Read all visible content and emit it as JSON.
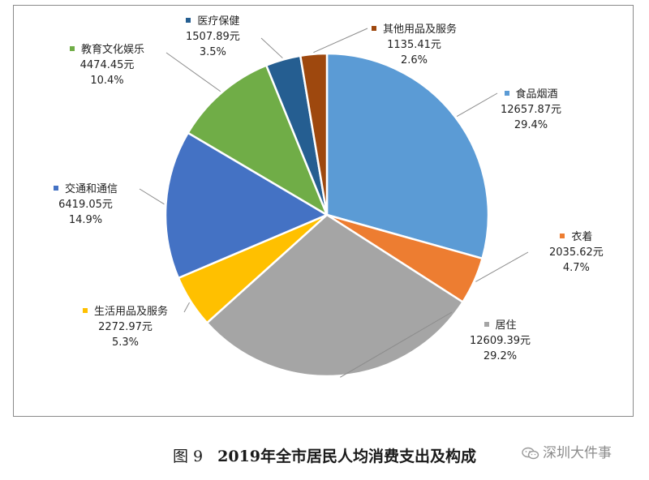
{
  "chart_data": {
    "type": "pie",
    "title": "2019年全市居民人均消费支出及构成",
    "slices": [
      {
        "name": "食品烟酒",
        "value": 12657.87,
        "value_label": "12657.87元",
        "percent_label": "29.4%",
        "color": "#5b9bd5"
      },
      {
        "name": "衣着",
        "value": 2035.62,
        "value_label": "2035.62元",
        "percent_label": "4.7%",
        "color": "#ed7d31"
      },
      {
        "name": "居住",
        "value": 12609.39,
        "value_label": "12609.39元",
        "percent_label": "29.2%",
        "color": "#a5a5a5"
      },
      {
        "name": "生活用品及服务",
        "value": 2272.97,
        "value_label": "2272.97元",
        "percent_label": "5.3%",
        "color": "#ffc000"
      },
      {
        "name": "交通和通信",
        "value": 6419.05,
        "value_label": "6419.05元",
        "percent_label": "14.9%",
        "color": "#4472c4"
      },
      {
        "name": "教育文化娱乐",
        "value": 4474.45,
        "value_label": "4474.45元",
        "percent_label": "10.4%",
        "color": "#70ad47"
      },
      {
        "name": "医疗保健",
        "value": 1507.89,
        "value_label": "1507.89元",
        "percent_label": "3.5%",
        "color": "#255e91"
      },
      {
        "name": "其他用品及服务",
        "value": 1135.41,
        "value_label": "1135.41元",
        "percent_label": "2.6%",
        "color": "#9e480e"
      }
    ],
    "start_angle_deg": 0,
    "direction": "clockwise",
    "legend": "none"
  },
  "caption": {
    "figure_no": "图 9",
    "title": "2019年全市居民人均消费支出及构成"
  },
  "watermark": {
    "text": "深圳大件事"
  }
}
